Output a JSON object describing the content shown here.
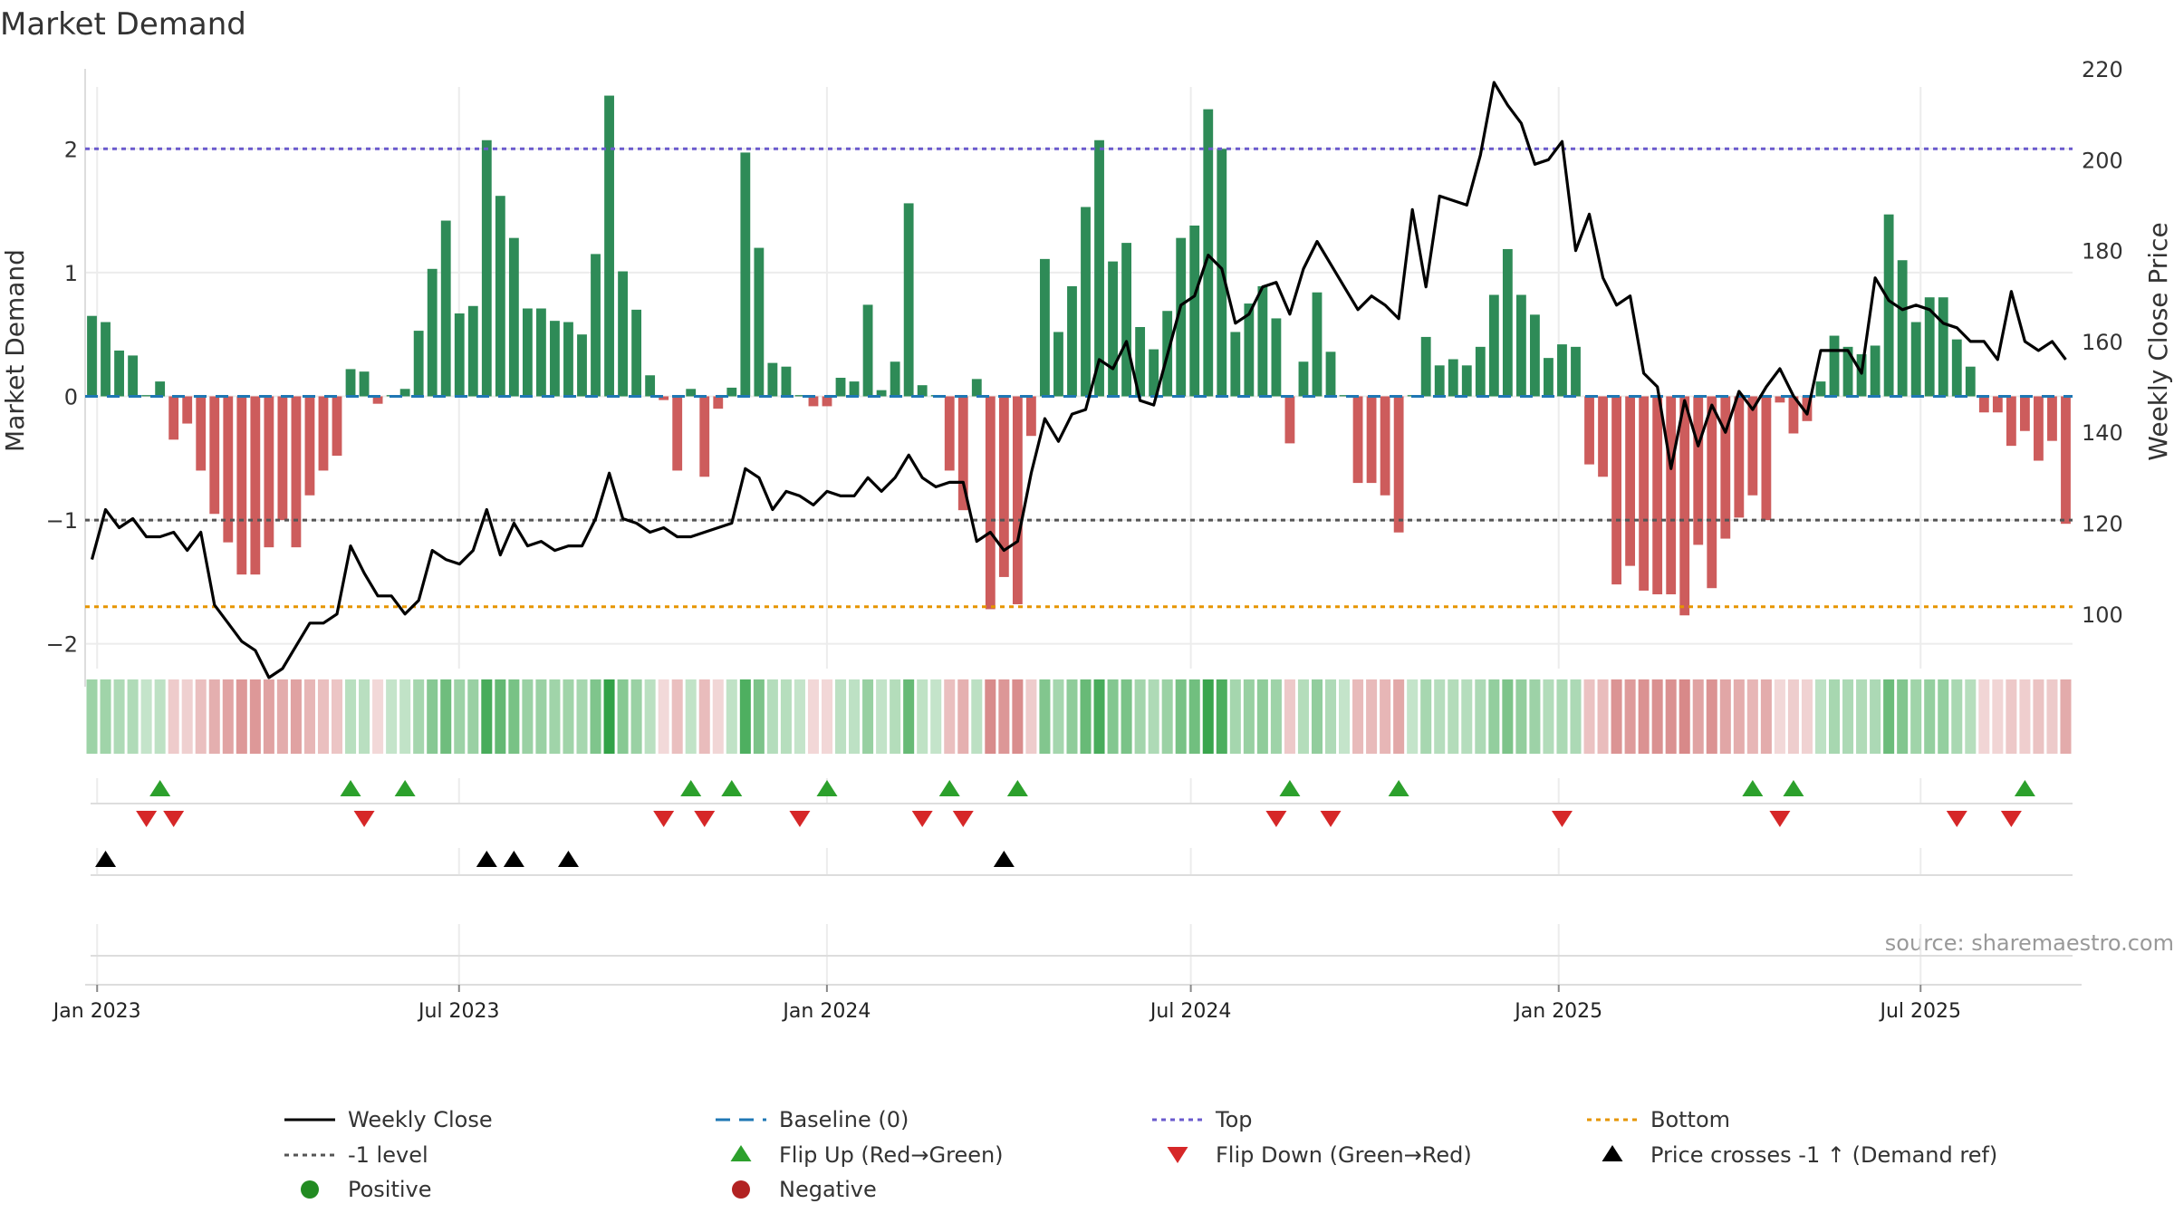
{
  "chart_data": {
    "type": "bar",
    "title": "Market Demand",
    "ylabel": "Market Demand",
    "y2label": "Weekly Close Price",
    "ylim": [
      -2.2,
      2.5
    ],
    "y2lim": [
      88,
      216
    ],
    "yticks": [
      "2",
      "1",
      "0",
      "−1",
      "−2"
    ],
    "y2ticks": [
      "220",
      "200",
      "180",
      "160",
      "140",
      "120",
      "100"
    ],
    "x_start": "2022-12-26",
    "x_end": "2025-09-15",
    "xticks": [
      "Jan 2023",
      "Jul 2023",
      "Jan 2024",
      "Jul 2024",
      "Jan 2025",
      "Jul 2025"
    ],
    "reference_lines": {
      "top": 2.0,
      "minus_one": -1.0,
      "bottom": -1.7,
      "baseline": 0
    },
    "demand": [
      0.65,
      0.6,
      0.37,
      0.33,
      0.01,
      0.12,
      -0.35,
      -0.22,
      -0.6,
      -0.95,
      -1.18,
      -1.44,
      -1.44,
      -1.22,
      -1.0,
      -1.22,
      -0.8,
      -0.6,
      -0.48,
      0.22,
      0.2,
      -0.06,
      0.01,
      0.06,
      0.53,
      1.03,
      1.42,
      0.67,
      0.73,
      2.07,
      1.62,
      1.28,
      0.71,
      0.71,
      0.61,
      0.6,
      0.5,
      1.15,
      2.43,
      1.01,
      0.7,
      0.17,
      -0.03,
      -0.6,
      0.06,
      -0.65,
      -0.1,
      0.07,
      1.97,
      1.2,
      0.27,
      0.24,
      0.01,
      -0.08,
      -0.08,
      0.15,
      0.12,
      0.74,
      0.05,
      0.28,
      1.56,
      0.09,
      0.01,
      -0.6,
      -0.92,
      0.14,
      -1.72,
      -1.46,
      -1.68,
      -0.32,
      1.11,
      0.52,
      0.89,
      1.53,
      2.07,
      1.09,
      1.24,
      0.56,
      0.38,
      0.69,
      1.28,
      1.38,
      2.32,
      2.0,
      0.52,
      0.75,
      0.89,
      0.63,
      -0.38,
      0.28,
      0.84,
      0.36,
      0.01,
      -0.7,
      -0.7,
      -0.8,
      -1.1,
      0.01,
      0.48,
      0.25,
      0.3,
      0.25,
      0.4,
      0.82,
      1.19,
      0.82,
      0.66,
      0.31,
      0.42,
      0.4,
      -0.55,
      -0.65,
      -1.52,
      -1.37,
      -1.57,
      -1.6,
      -1.6,
      -1.77,
      -1.2,
      -1.55,
      -1.15,
      -0.98,
      -0.8,
      -1.0,
      -0.05,
      -0.3,
      -0.2,
      0.12,
      0.49,
      0.4,
      0.34,
      0.41,
      1.47,
      1.1,
      0.6,
      0.8,
      0.8,
      0.46,
      0.24,
      -0.13,
      -0.13,
      -0.4,
      -0.28,
      -0.52,
      -0.36,
      -1.03
    ],
    "weekly_close": [
      112,
      123,
      119,
      121,
      117,
      117,
      118,
      114,
      118,
      102,
      98,
      94,
      92,
      86,
      88,
      93,
      98,
      98,
      100,
      115,
      109,
      104,
      104,
      100,
      103,
      114,
      112,
      111,
      114,
      123,
      113,
      120,
      115,
      116,
      114,
      115,
      115,
      121,
      131,
      121,
      120,
      118,
      119,
      117,
      117,
      118,
      119,
      120,
      132,
      130,
      123,
      127,
      126,
      124,
      127,
      126,
      126,
      130,
      127,
      130,
      135,
      130,
      128,
      129,
      129,
      116,
      118,
      114,
      116,
      131,
      143,
      138,
      144,
      145,
      156,
      154,
      160,
      147,
      146,
      157,
      168,
      170,
      179,
      176,
      164,
      166,
      172,
      173,
      166,
      176,
      182,
      177,
      172,
      167,
      170,
      168,
      165,
      189,
      172,
      192,
      191,
      190,
      201,
      217,
      212,
      208,
      199,
      200,
      204,
      180,
      188,
      174,
      168,
      170,
      153,
      150,
      132,
      147,
      137,
      146,
      140,
      149,
      145,
      150,
      154,
      148,
      144,
      158,
      158,
      158,
      153,
      174,
      169,
      167,
      168,
      167,
      164,
      163,
      160,
      160,
      156,
      171,
      160,
      158,
      160,
      156
    ],
    "bottom_trough_index": 13,
    "flip_up_idx": [
      5,
      19,
      23,
      44,
      47,
      54,
      63,
      68,
      88,
      96,
      122,
      125,
      142
    ],
    "flip_down_idx": [
      4,
      6,
      20,
      42,
      45,
      52,
      61,
      64,
      87,
      91,
      108,
      124,
      137,
      141
    ],
    "price_cross_idx": [
      1,
      29,
      31,
      35,
      67
    ],
    "source": "source: sharemaestro.com",
    "legend": [
      {
        "label": "Weekly Close",
        "symbol": "line",
        "color": "#000000"
      },
      {
        "label": "Baseline (0)",
        "symbol": "dash",
        "color": "#1f77b4"
      },
      {
        "label": "Top",
        "symbol": "dot",
        "color": "#6a5acd"
      },
      {
        "label": "Bottom",
        "symbol": "dot",
        "color": "#e69500"
      },
      {
        "label": "-1 level",
        "symbol": "dot",
        "color": "#555555"
      },
      {
        "label": "Flip Up (Red→Green)",
        "symbol": "tri-up",
        "color": "#2ca02c"
      },
      {
        "label": "Flip Down (Green→Red)",
        "symbol": "tri-down",
        "color": "#d62728"
      },
      {
        "label": "Price crosses -1 ↑ (Demand ref)",
        "symbol": "tri-up",
        "color": "#000000"
      },
      {
        "label": "Positive",
        "symbol": "circle",
        "color": "#228B22"
      },
      {
        "label": "Negative",
        "symbol": "circle",
        "color": "#b22222"
      }
    ],
    "colors": {
      "positive": "#2e8b57",
      "negative": "#cd5c5c",
      "close": "#000000"
    }
  }
}
